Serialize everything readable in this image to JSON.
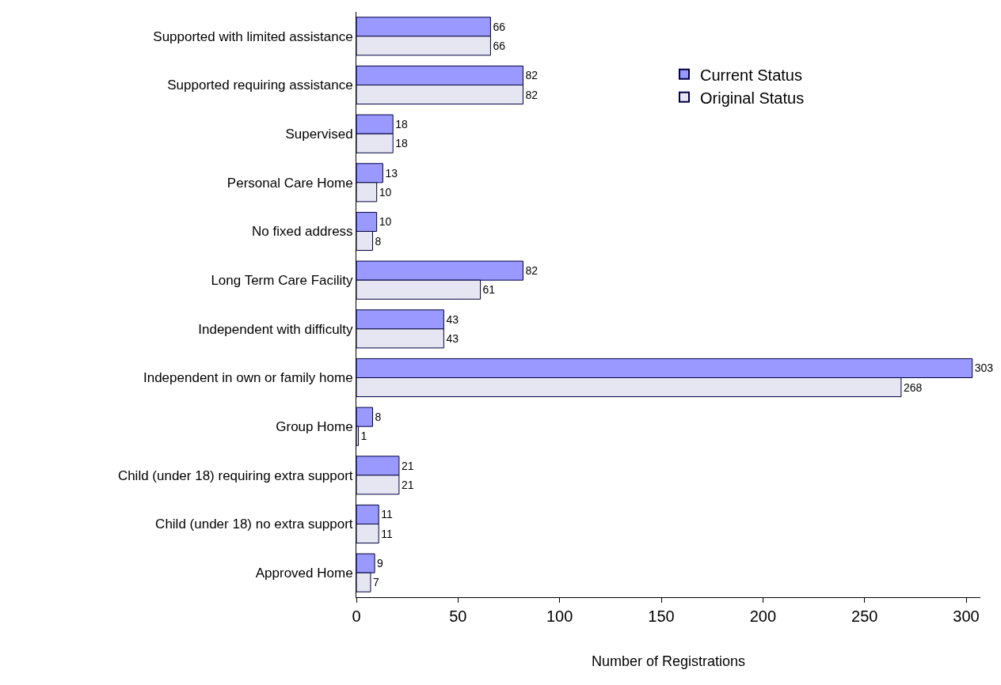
{
  "chart_data": {
    "type": "bar",
    "orientation": "horizontal",
    "xlabel": "Number of Registrations",
    "categories": [
      "Supported with limited assistance",
      "Supported requiring assistance",
      "Supervised",
      "Personal Care Home",
      "No fixed address",
      "Long Term Care Facility",
      "Independent with difficulty",
      "Independent in own or family home",
      "Group Home",
      "Child (under 18) requiring extra support",
      "Child (under 18) no extra support",
      "Approved Home"
    ],
    "series": [
      {
        "name": "Current Status",
        "color": "#9999ff",
        "values": [
          66,
          82,
          18,
          13,
          10,
          82,
          43,
          303,
          8,
          21,
          11,
          9
        ]
      },
      {
        "name": "Original Status",
        "color": "#e6e6f2",
        "values": [
          66,
          82,
          18,
          10,
          8,
          61,
          43,
          268,
          1,
          21,
          11,
          7
        ]
      }
    ],
    "xlim": [
      0,
      307
    ],
    "xticks": [
      0,
      50,
      100,
      150,
      200,
      250,
      300
    ],
    "data_labels": true,
    "legend": "top right"
  }
}
